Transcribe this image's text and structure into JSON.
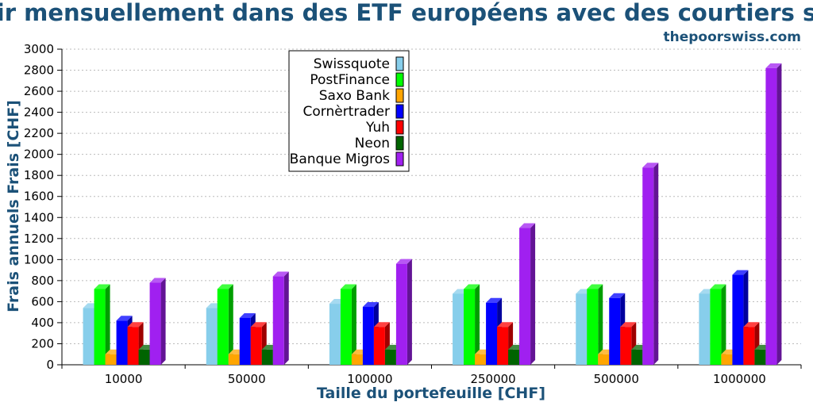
{
  "chart_data": {
    "type": "bar",
    "title": "…ir mensuellement dans des ETF européens avec des courtiers s…",
    "source_label": "thepoorswiss.com",
    "xlabel": "Taille du portefeuille [CHF]",
    "ylabel": "Frais annuels Frais [CHF]",
    "categories": [
      "10000",
      "50000",
      "100000",
      "250000",
      "500000",
      "1000000"
    ],
    "ylim": [
      0,
      3000
    ],
    "yticks": [
      0,
      200,
      400,
      600,
      800,
      1000,
      1200,
      1400,
      1600,
      1800,
      2000,
      2200,
      2400,
      2600,
      2800,
      3000
    ],
    "grid": true,
    "legend_position": "top-left",
    "style": "3d-bar",
    "series": [
      {
        "name": "Swissquote",
        "color": "#87ceeb",
        "values": [
          540,
          540,
          580,
          675,
          675,
          675
        ]
      },
      {
        "name": "PostFinance",
        "color": "#00ff00",
        "values": [
          720,
          720,
          720,
          720,
          720,
          720
        ]
      },
      {
        "name": "Saxo Bank",
        "color": "#ffa500",
        "values": [
          100,
          100,
          100,
          100,
          100,
          100
        ]
      },
      {
        "name": "Cornèrtrader",
        "color": "#0000ff",
        "values": [
          420,
          445,
          550,
          590,
          635,
          855
        ]
      },
      {
        "name": "Yuh",
        "color": "#ff0000",
        "values": [
          360,
          360,
          360,
          360,
          360,
          360
        ]
      },
      {
        "name": "Neon",
        "color": "#006400",
        "values": [
          144,
          144,
          144,
          144,
          144,
          144
        ]
      },
      {
        "name": "Banque Migros",
        "color": "#a020f0",
        "values": [
          780,
          840,
          960,
          1300,
          1875,
          2820
        ]
      }
    ]
  }
}
